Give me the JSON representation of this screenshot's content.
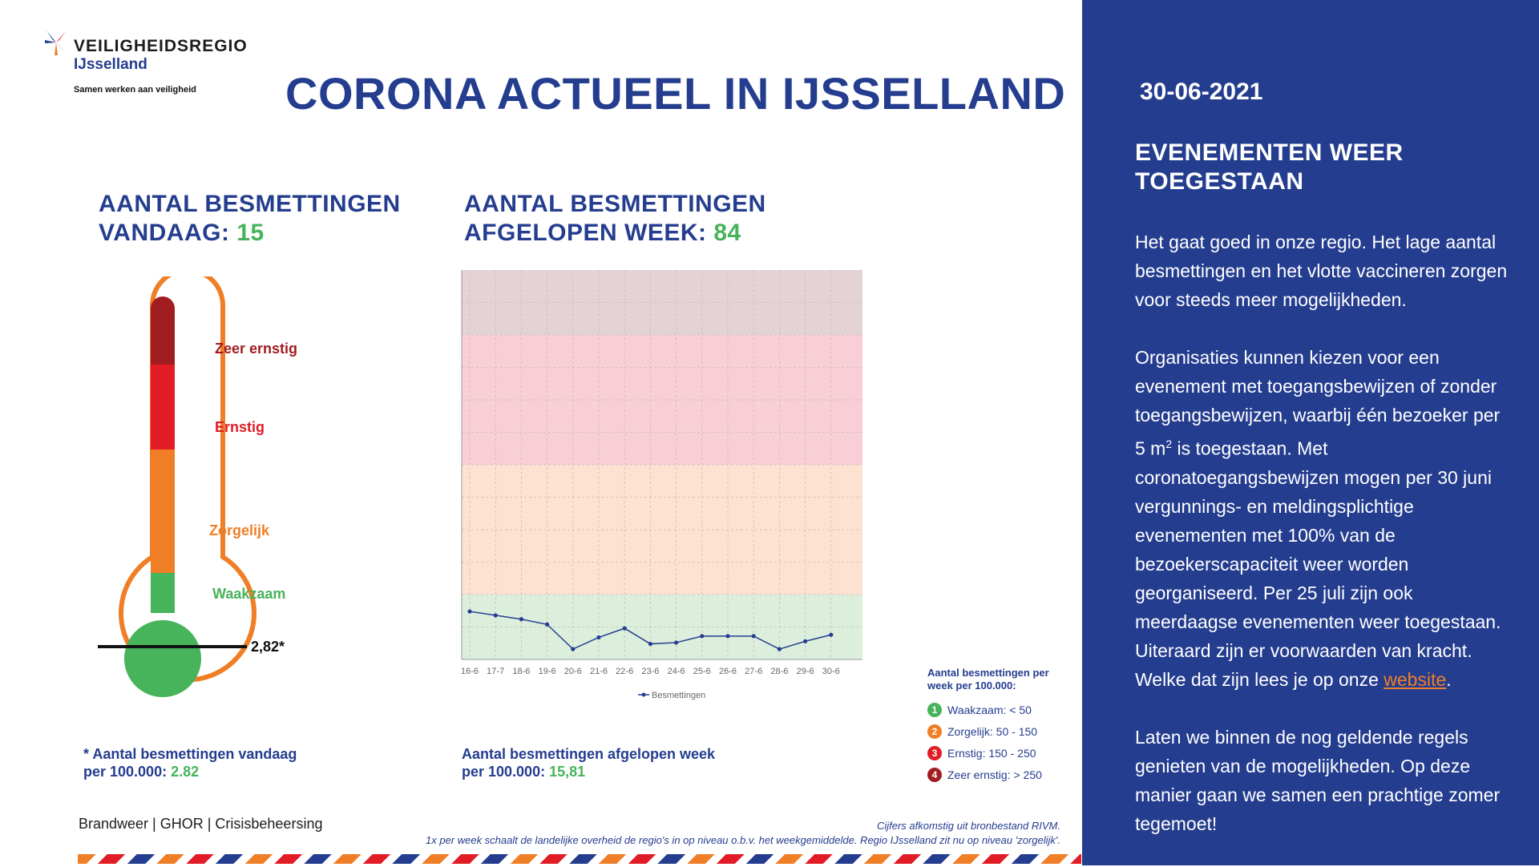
{
  "header": {
    "logo_name": "VEILIGHEIDSREGIO",
    "logo_region": "IJsselland",
    "logo_tagline": "Samen werken aan veiligheid",
    "title": "CORONA ACTUEEL IN IJSSELLAND"
  },
  "today": {
    "heading_line1": "AANTAL BESMETTINGEN",
    "heading_line2": "VANDAAG:",
    "count": "15",
    "footnote_line1": "* Aantal besmettingen vandaag",
    "footnote_line2": "per 100.000:",
    "per_100k": "2.82"
  },
  "thermometer": {
    "levels": [
      {
        "label": "Zeer ernstig",
        "color": "#a21d21"
      },
      {
        "label": "Ernstig",
        "color": "#e21c26"
      },
      {
        "label": "Zorgelijk",
        "color": "#f07e26"
      },
      {
        "label": "Waakzaam",
        "color": "#47b35a"
      }
    ],
    "marker_label": "2,82*",
    "marker_value": 2.82,
    "outline_color": "#f07e26"
  },
  "week": {
    "heading_line1": "AANTAL BESMETTINGEN",
    "heading_line2": "AFGELOPEN WEEK:",
    "count": "84",
    "footnote_line1": "Aantal besmettingen afgelopen week",
    "footnote_line2": "per 100.000:",
    "per_100k": "15,81"
  },
  "chart_data": {
    "type": "line",
    "x": [
      "16-6",
      "17-7",
      "18-6",
      "19-6",
      "20-6",
      "21-6",
      "22-6",
      "23-6",
      "24-6",
      "25-6",
      "26-6",
      "27-6",
      "28-6",
      "29-6",
      "30-6"
    ],
    "series": [
      {
        "name": "Besmettingen",
        "values": [
          37,
          34,
          31,
          27,
          8,
          17,
          24,
          12,
          13,
          18,
          18,
          18,
          8,
          14,
          19
        ],
        "color": "#243d8f"
      }
    ],
    "ylim": [
      0,
      300
    ],
    "bands": [
      {
        "from": 0,
        "to": 50,
        "color": "#dcefdc"
      },
      {
        "from": 50,
        "to": 150,
        "color": "#fde2d2"
      },
      {
        "from": 150,
        "to": 250,
        "color": "#f8cfd6"
      },
      {
        "from": 250,
        "to": 300,
        "color": "#e5d2d5"
      }
    ],
    "grid": true,
    "legend_position": "bottom-center"
  },
  "legend": {
    "title_line1": "Aantal besmettingen per",
    "title_line2": "week per 100.000:",
    "items": [
      {
        "number": "1",
        "label": "Waakzaam: < 50",
        "color": "#47b35a"
      },
      {
        "number": "2",
        "label": "Zorgelijk: 50 - 150",
        "color": "#f07e26"
      },
      {
        "number": "3",
        "label": "Ernstig: 150 - 250",
        "color": "#e21c26"
      },
      {
        "number": "4",
        "label": "Zeer ernstig: > 250",
        "color": "#a21d21"
      }
    ]
  },
  "footer": {
    "left": "Brandweer | GHOR | Crisisbeheersing",
    "right_line1": "Cijfers afkomstig uit bronbestand RIVM.",
    "right_line2": "1x per week schaalt de landelijke overheid de regio's in op niveau o.b.v. het weekgemiddelde. Regio IJsselland zit nu op niveau 'zorgelijk'."
  },
  "panel": {
    "date": "30-06-2021",
    "title": "EVENEMENTEN WEER TOEGESTAAN",
    "p1": "Het gaat goed in onze regio. Het lage aantal besmettingen en het vlotte vaccineren zorgen voor steeds meer mogelijkheden.",
    "p2_before_sup": "Organisaties kunnen kiezen voor een evenement met toegangsbewijzen of zonder toegangsbewijzen, waarbij één bezoeker per 5 m",
    "p2_sup": "2",
    "p2_after_sup": " is toegestaan. Met coronatoegangsbewijzen mogen per 30 juni vergunnings- en meldingsplichtige evenementen met 100% van de bezoekerscapaciteit weer worden georganiseerd. Per 25 juli zijn ook meerdaagse evenementen weer toegestaan. Uiteraard zijn er voorwaarden van kracht. Welke dat zijn lees je op onze ",
    "p2_link": "website",
    "p2_end": ".",
    "p3": "Laten we binnen de nog geldende regels genieten van de mogelijkheden. Op deze manier gaan we samen een prachtige zomer tegemoet!",
    "background": "#243d8f"
  }
}
